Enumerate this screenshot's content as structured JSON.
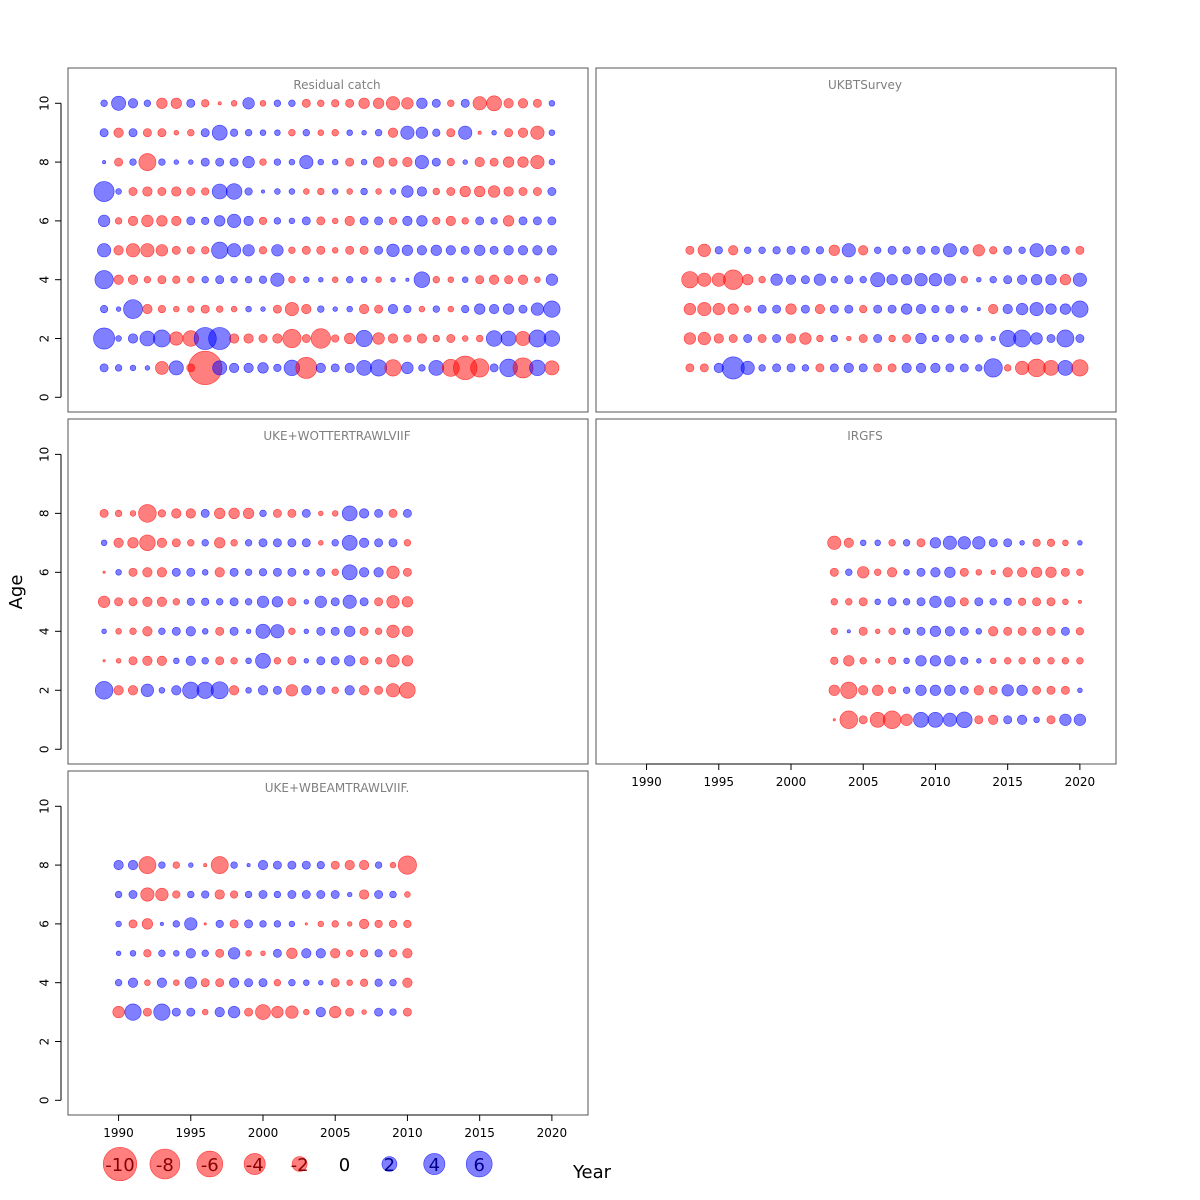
{
  "colors": {
    "negative": "#ff0000",
    "positive": "#0000ff",
    "bubble_opacity": 0.5,
    "frame": "#555555",
    "title": "#7f7f7f"
  },
  "axes": {
    "xlabel": "Year",
    "ylabel": "Age",
    "xlim": [
      1986.5,
      2022.5
    ],
    "ylim": [
      -0.5,
      11.2
    ],
    "xticks": [
      1990,
      1995,
      2000,
      2005,
      2010,
      2015,
      2020
    ],
    "yticks": [
      0,
      2,
      4,
      6,
      8,
      10
    ]
  },
  "legend": [
    {
      "label": "-10",
      "value": -10
    },
    {
      "label": "-8",
      "value": -8
    },
    {
      "label": "-6",
      "value": -6
    },
    {
      "label": "-4",
      "value": -4
    },
    {
      "label": "-2",
      "value": -2
    },
    {
      "label": "0",
      "value": 0
    },
    {
      "label": "2",
      "value": 2
    },
    {
      "label": "4",
      "value": 4
    },
    {
      "label": "6",
      "value": 6
    }
  ],
  "chart_data": [
    {
      "type": "scatter",
      "title": "Residual catch",
      "years": [
        1989,
        1990,
        1991,
        1992,
        1993,
        1994,
        1995,
        1996,
        1997,
        1998,
        1999,
        2000,
        2001,
        2002,
        2003,
        2004,
        2005,
        2006,
        2007,
        2008,
        2009,
        2010,
        2011,
        2012,
        2013,
        2014,
        2015,
        2016,
        2017,
        2018,
        2019,
        2020
      ],
      "ages": [
        1,
        2,
        3,
        4,
        5,
        6,
        7,
        8,
        9,
        10
      ],
      "residuals": [
        [
          0.6,
          0.4,
          0.3,
          0.2,
          -1.5,
          1.8,
          -0.6,
          -10,
          1.8,
          0.8,
          0.8,
          1.0,
          0.5,
          2.2,
          -4.0,
          0.8,
          0.6,
          0.8,
          2.0,
          2.4,
          -2.4,
          1.2,
          0.4,
          2.0,
          -2.6,
          -5.0,
          -3.0,
          0.6,
          2.8,
          -3.6,
          2.2,
          -1.8
        ],
        [
          4.0,
          0.3,
          0.8,
          2.0,
          2.6,
          -1.6,
          -2.2,
          4.4,
          4.4,
          -0.8,
          -0.8,
          -0.6,
          -0.8,
          -3.0,
          -0.6,
          -3.4,
          -0.5,
          -1.0,
          2.4,
          -1.2,
          -0.8,
          -0.5,
          -0.8,
          -0.4,
          -0.6,
          -0.3,
          -0.4,
          2.2,
          2.0,
          -1.8,
          2.6,
          2.2
        ],
        [
          0.5,
          0.2,
          3.2,
          -0.8,
          -0.5,
          -0.3,
          -0.4,
          -0.6,
          -0.4,
          -0.3,
          0.3,
          0.2,
          -0.6,
          -1.6,
          -0.8,
          0.4,
          0.2,
          0.3,
          -0.8,
          -0.6,
          0.8,
          0.5,
          -0.3,
          0.4,
          -0.3,
          0.5,
          1.0,
          0.8,
          1.0,
          0.6,
          1.4,
          2.4
        ],
        [
          3.0,
          -0.8,
          -0.8,
          -0.4,
          -0.6,
          -0.5,
          -0.4,
          0.4,
          0.6,
          0.4,
          0.4,
          0.5,
          1.6,
          -0.4,
          0.3,
          0.2,
          -0.3,
          0.4,
          0.3,
          -0.3,
          0.2,
          0.1,
          2.2,
          -0.4,
          -0.3,
          0.3,
          -0.6,
          -0.8,
          -0.6,
          -0.8,
          -0.3,
          1.2
        ],
        [
          1.6,
          -0.8,
          -1.6,
          -1.6,
          -1.2,
          -0.6,
          -0.5,
          -0.5,
          2.4,
          1.6,
          1.2,
          -0.5,
          1.2,
          -0.4,
          -0.6,
          -0.6,
          -0.3,
          -0.6,
          -0.6,
          0.6,
          1.4,
          1.0,
          0.8,
          1.0,
          0.8,
          0.6,
          1.0,
          0.6,
          0.8,
          0.8,
          0.8,
          0.8
        ],
        [
          1.2,
          -0.4,
          -0.8,
          -1.2,
          -1.0,
          -0.8,
          0.6,
          0.5,
          1.0,
          1.6,
          0.8,
          -0.5,
          0.4,
          0.3,
          0.6,
          -0.6,
          -0.3,
          -0.8,
          0.6,
          0.6,
          -0.5,
          0.8,
          1.0,
          -0.5,
          -0.8,
          -0.4,
          0.6,
          0.4,
          -1.0,
          0.6,
          0.6,
          0.6
        ],
        [
          3.6,
          0.3,
          -0.6,
          -0.8,
          -0.6,
          -0.8,
          -0.6,
          -0.5,
          2.0,
          2.2,
          0.5,
          0.1,
          0.3,
          0.3,
          -0.3,
          -0.4,
          0.3,
          -0.3,
          0.4,
          -0.3,
          0.3,
          1.2,
          0.8,
          -0.4,
          -0.6,
          -1.0,
          -1.0,
          -1.2,
          -0.8,
          -0.6,
          -0.6,
          0.6
        ],
        [
          0.1,
          -0.6,
          0.4,
          -2.6,
          0.4,
          0.2,
          0.2,
          0.6,
          0.6,
          0.6,
          1.2,
          -0.4,
          0.4,
          0.3,
          1.6,
          0.3,
          0.3,
          -0.6,
          0.3,
          -1.0,
          -0.6,
          -0.8,
          1.6,
          0.6,
          -0.5,
          0.2,
          -0.8,
          -0.6,
          -1.0,
          -1.0,
          -1.6,
          0.3
        ],
        [
          0.6,
          -0.8,
          0.6,
          -0.6,
          -0.6,
          -0.2,
          -0.4,
          0.6,
          2.0,
          0.5,
          0.4,
          0.3,
          0.3,
          -0.4,
          0.4,
          -0.3,
          -0.4,
          0.3,
          0.2,
          0.4,
          -0.8,
          1.6,
          1.2,
          0.5,
          -0.6,
          1.6,
          -0.1,
          0.2,
          -0.6,
          -0.8,
          -1.6,
          0.3
        ],
        [
          0.4,
          1.8,
          0.8,
          0.4,
          -1.0,
          -1.0,
          0.6,
          -0.5,
          -0.1,
          -0.3,
          1.2,
          -0.3,
          0.4,
          0.4,
          -0.6,
          -0.4,
          -0.5,
          -0.6,
          -1.0,
          -1.0,
          -1.6,
          -1.2,
          1.0,
          0.6,
          -0.4,
          0.6,
          -1.6,
          -2.0,
          -0.8,
          -0.8,
          -0.6,
          0.3
        ]
      ]
    },
    {
      "type": "scatter",
      "title": "UKBTSurvey",
      "years": [
        1993,
        1994,
        1995,
        1996,
        1997,
        1998,
        1999,
        2000,
        2001,
        2002,
        2003,
        2004,
        2005,
        2006,
        2007,
        2008,
        2009,
        2010,
        2011,
        2012,
        2013,
        2014,
        2015,
        2016,
        2017,
        2018,
        2019,
        2020
      ],
      "ages": [
        1,
        2,
        3,
        4,
        5
      ],
      "residuals": [
        [
          -0.6,
          -0.6,
          0.8,
          4.4,
          1.6,
          0.4,
          0.6,
          0.6,
          0.4,
          -0.6,
          0.6,
          0.8,
          0.6,
          -0.6,
          -0.6,
          0.8,
          0.8,
          0.8,
          0.6,
          0.6,
          0.4,
          3.0,
          -0.4,
          -1.6,
          -2.8,
          -2.0,
          2.0,
          -2.4
        ],
        [
          -1.2,
          -1.4,
          -0.8,
          -0.6,
          0.6,
          -0.6,
          0.6,
          -0.8,
          -1.2,
          -0.4,
          0.4,
          -0.2,
          -0.6,
          0.6,
          -0.4,
          -0.6,
          1.0,
          0.4,
          0.6,
          0.6,
          0.5,
          0.2,
          2.4,
          2.6,
          1.2,
          0.6,
          2.6,
          0.6
        ],
        [
          -1.2,
          -1.6,
          -1.2,
          -1.0,
          -0.4,
          0.6,
          0.6,
          -1.0,
          0.6,
          -0.8,
          0.6,
          0.6,
          -0.5,
          0.6,
          0.6,
          1.0,
          0.8,
          0.5,
          0.6,
          0.4,
          0.1,
          -0.8,
          0.8,
          1.2,
          1.6,
          1.0,
          1.0,
          2.4
        ],
        [
          -2.4,
          -1.6,
          -1.6,
          -3.4,
          -1.0,
          -0.4,
          1.2,
          0.8,
          0.6,
          1.2,
          0.4,
          0.6,
          0.4,
          1.8,
          1.0,
          1.0,
          1.4,
          1.4,
          1.2,
          -0.4,
          0.2,
          0.4,
          0.6,
          0.8,
          1.0,
          1.0,
          -1.0,
          1.6
        ],
        [
          -0.6,
          -1.4,
          0.5,
          -0.8,
          0.4,
          0.4,
          0.5,
          0.6,
          0.6,
          0.5,
          -1.0,
          1.6,
          -0.8,
          0.4,
          0.6,
          0.5,
          0.6,
          0.6,
          1.6,
          0.6,
          -1.2,
          -0.5,
          0.6,
          0.4,
          1.6,
          1.0,
          0.6,
          -0.6
        ]
      ]
    },
    {
      "type": "scatter",
      "title": "UKE+WOTTERTRAWLVIIF",
      "years": [
        1989,
        1990,
        1991,
        1992,
        1993,
        1994,
        1995,
        1996,
        1997,
        1998,
        1999,
        2000,
        2001,
        2002,
        2003,
        2004,
        2005,
        2006,
        2007,
        2008,
        2009,
        2010
      ],
      "ages": [
        2,
        3,
        4,
        5,
        6,
        7,
        8
      ],
      "residuals": [
        [
          2.8,
          -0.8,
          -0.8,
          1.4,
          0.3,
          0.8,
          2.4,
          2.4,
          2.6,
          -0.8,
          0.3,
          0.8,
          0.6,
          -1.2,
          0.8,
          0.6,
          -0.4,
          0.8,
          -0.8,
          -0.6,
          -1.6,
          -2.2
        ],
        [
          -0.05,
          -0.2,
          -0.6,
          -0.8,
          -0.8,
          0.3,
          0.8,
          0.4,
          -0.6,
          -0.4,
          0.3,
          2.0,
          -0.4,
          -0.6,
          0.2,
          0.6,
          0.6,
          1.0,
          -0.6,
          -0.4,
          -1.4,
          -1.0
        ],
        [
          0.2,
          -0.3,
          -0.4,
          -0.8,
          0.4,
          0.6,
          0.8,
          0.3,
          -0.6,
          0.6,
          0.2,
          1.8,
          1.6,
          -0.4,
          0.2,
          0.6,
          0.6,
          1.0,
          -0.6,
          -0.4,
          -1.4,
          -1.0
        ],
        [
          -1.2,
          -0.6,
          -0.6,
          -0.8,
          -0.8,
          -0.4,
          0.5,
          0.5,
          0.4,
          0.6,
          0.4,
          1.2,
          1.0,
          -0.6,
          0.2,
          1.2,
          0.6,
          1.6,
          0.6,
          -0.6,
          -1.4,
          -1.0
        ],
        [
          -0.05,
          0.3,
          -0.6,
          -0.8,
          -0.8,
          0.6,
          0.6,
          0.3,
          -0.8,
          0.6,
          0.4,
          0.5,
          0.6,
          0.6,
          0.3,
          0.6,
          -0.4,
          2.0,
          0.8,
          0.8,
          -1.4,
          -0.6
        ],
        [
          0.3,
          -0.8,
          -1.0,
          -2.2,
          -0.8,
          -0.6,
          -0.4,
          0.4,
          -1.0,
          -0.4,
          0.4,
          0.6,
          0.6,
          0.6,
          0.6,
          -0.2,
          0.4,
          2.0,
          0.8,
          0.6,
          0.6,
          -0.4
        ],
        [
          -0.6,
          -0.4,
          -0.3,
          -2.8,
          -0.5,
          -0.8,
          -0.8,
          0.6,
          -1.0,
          -1.0,
          -1.0,
          0.4,
          -0.6,
          -0.6,
          0.6,
          -0.2,
          -0.3,
          2.0,
          0.8,
          0.6,
          -0.6,
          0.6
        ]
      ]
    },
    {
      "type": "scatter",
      "title": "IRGFS",
      "years": [
        2003,
        2004,
        2005,
        2006,
        2007,
        2008,
        2009,
        2010,
        2011,
        2012,
        2013,
        2014,
        2015,
        2016,
        2017,
        2018,
        2019,
        2020
      ],
      "ages": [
        1,
        2,
        3,
        4,
        5,
        6,
        7
      ],
      "residuals": [
        [
          -0.05,
          -2.8,
          -0.6,
          -2.0,
          -2.8,
          -1.2,
          2.0,
          2.0,
          1.6,
          2.2,
          -0.6,
          -0.8,
          0.6,
          0.8,
          0.3,
          -0.6,
          1.2,
          1.2
        ],
        [
          -1.0,
          -2.4,
          -0.8,
          -1.0,
          -0.5,
          0.4,
          1.0,
          1.0,
          1.0,
          0.6,
          -0.8,
          -0.6,
          1.2,
          1.0,
          -0.6,
          -0.6,
          -0.6,
          0.2
        ],
        [
          -0.5,
          -1.0,
          -0.4,
          -0.2,
          -0.5,
          0.3,
          1.0,
          1.0,
          1.0,
          0.5,
          0.2,
          -0.3,
          -0.4,
          -0.4,
          -0.4,
          -0.4,
          -0.4,
          -0.4
        ],
        [
          -0.4,
          0.1,
          -0.6,
          -0.2,
          -0.4,
          0.4,
          0.6,
          1.0,
          0.8,
          0.6,
          0.3,
          -0.8,
          -0.6,
          -0.6,
          -0.6,
          -0.6,
          0.6,
          -0.5
        ],
        [
          -0.4,
          -0.4,
          -0.6,
          0.3,
          0.6,
          0.4,
          0.6,
          1.2,
          1.0,
          -0.6,
          0.6,
          0.4,
          0.5,
          -0.5,
          -0.6,
          -0.6,
          -0.3,
          -0.1
        ],
        [
          -0.6,
          0.4,
          -1.2,
          -0.4,
          -0.8,
          0.3,
          0.6,
          0.8,
          1.0,
          -0.6,
          -0.3,
          -0.2,
          -0.8,
          -0.8,
          -1.0,
          -1.0,
          -0.6,
          -0.4
        ],
        [
          -1.6,
          -0.8,
          0.3,
          0.3,
          -0.4,
          0.4,
          -0.6,
          1.0,
          1.6,
          1.4,
          1.4,
          0.6,
          0.6,
          0.2,
          -0.5,
          -0.5,
          -0.3,
          0.2
        ]
      ]
    },
    {
      "type": "scatter",
      "title": "UKE+WBEAMTRAWLVIIF.",
      "years": [
        1990,
        1991,
        1992,
        1993,
        1994,
        1995,
        1996,
        1997,
        1998,
        1999,
        2000,
        2001,
        2002,
        2003,
        2004,
        2005,
        2006,
        2007,
        2008,
        2009,
        2010
      ],
      "ages": [
        3,
        4,
        5,
        6,
        7,
        8
      ],
      "residuals": [
        [
          -1.2,
          2.4,
          -0.6,
          2.4,
          0.6,
          0.6,
          -0.3,
          0.8,
          1.2,
          -0.6,
          -2.0,
          -1.2,
          -1.4,
          -0.3,
          0.8,
          -1.2,
          -0.6,
          -0.2,
          0.6,
          0.4,
          -0.6
        ],
        [
          0.4,
          0.8,
          -0.3,
          0.8,
          -0.3,
          1.2,
          -0.6,
          -0.6,
          0.8,
          0.6,
          0.6,
          -0.4,
          0.4,
          0.3,
          0.2,
          -0.6,
          -0.3,
          -0.5,
          0.5,
          0.4,
          -0.8
        ],
        [
          0.2,
          0.3,
          -0.5,
          0.4,
          0.3,
          0.8,
          0.4,
          -0.6,
          1.2,
          -0.3,
          -0.2,
          0.6,
          -1.0,
          0.8,
          0.8,
          -0.8,
          -0.4,
          -0.5,
          0.5,
          -0.5,
          -0.8
        ],
        [
          0.3,
          -0.6,
          -1.0,
          0.1,
          0.4,
          1.4,
          -0.05,
          0.5,
          -0.6,
          0.6,
          0.4,
          0.4,
          0.3,
          -0.05,
          -0.3,
          -0.4,
          -0.2,
          -0.8,
          -0.5,
          -0.5,
          -0.5
        ],
        [
          0.4,
          0.6,
          -1.6,
          -1.4,
          -0.5,
          0.4,
          0.5,
          -0.8,
          -0.5,
          0.4,
          0.6,
          0.4,
          0.6,
          0.6,
          0.6,
          0.6,
          0.2,
          -0.8,
          0.6,
          0.4,
          -0.3
        ],
        [
          0.8,
          0.8,
          -2.6,
          0.4,
          -0.4,
          0.2,
          -0.1,
          -2.6,
          0.4,
          0.1,
          0.8,
          0.6,
          0.6,
          0.6,
          0.5,
          -0.6,
          -0.8,
          -0.8,
          0.4,
          -0.3,
          -3.0
        ]
      ]
    }
  ]
}
